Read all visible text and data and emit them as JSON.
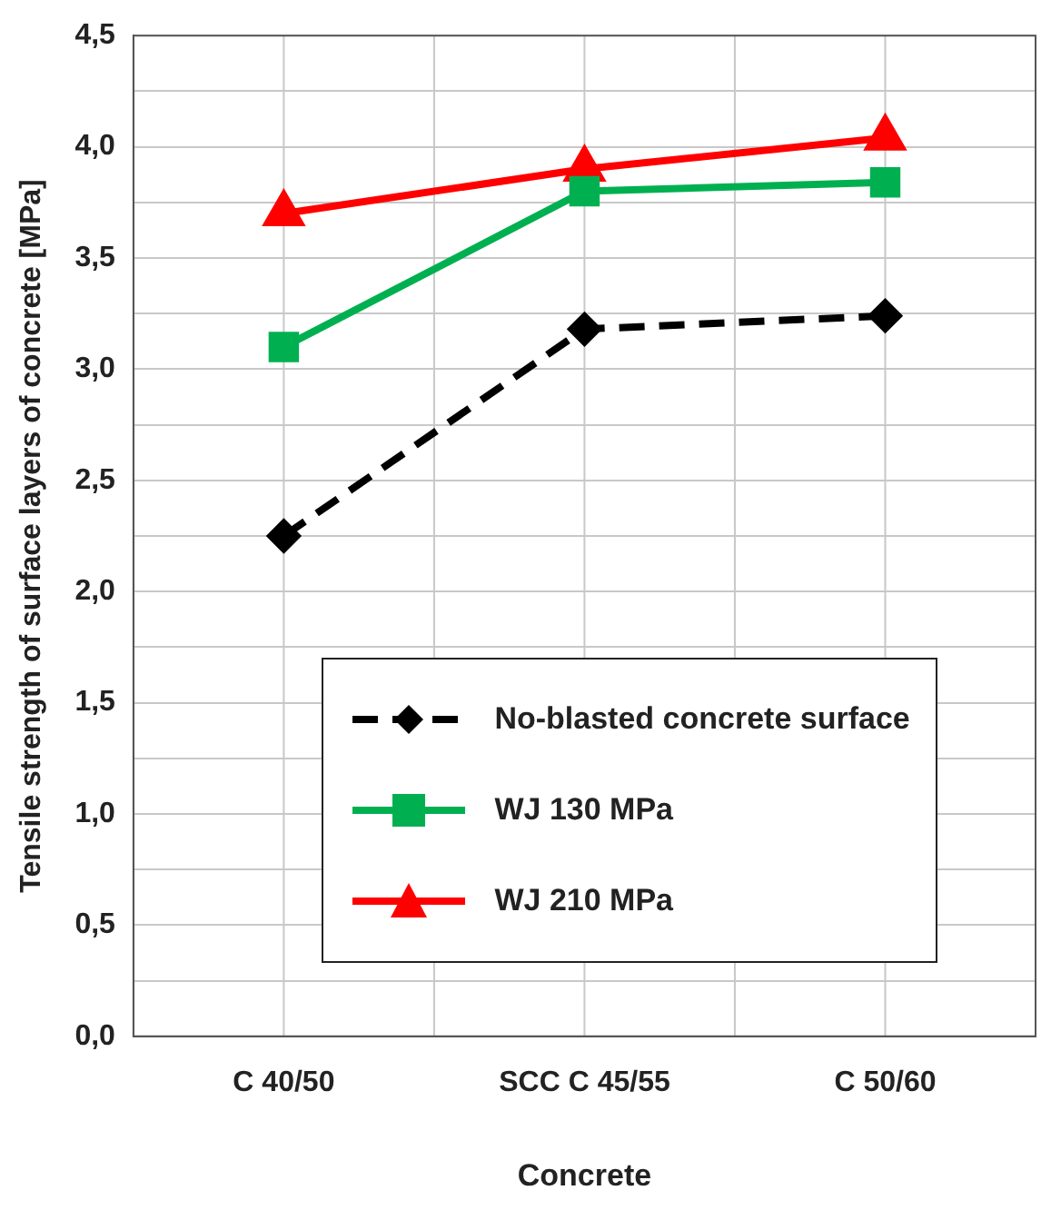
{
  "chart_data": {
    "type": "line",
    "xlabel": "Concrete",
    "ylabel": "Tensile strength of surface layers of concrete [MPa]",
    "categories": [
      "C 40/50",
      "SCC C 45/55",
      "C 50/60"
    ],
    "series": [
      {
        "name": "No-blasted concrete surface",
        "color": "#000000",
        "values": [
          2.25,
          3.18,
          3.24
        ],
        "marker": "diamond",
        "line_style": "dashed"
      },
      {
        "name": "WJ 130 MPa",
        "color": "#00b050",
        "values": [
          3.1,
          3.8,
          3.84
        ],
        "marker": "square",
        "line_style": "solid"
      },
      {
        "name": "WJ 210 MPa",
        "color": "#ff0000",
        "values": [
          3.7,
          3.9,
          4.04
        ],
        "marker": "triangle",
        "line_style": "solid"
      }
    ],
    "ylim": [
      0,
      4.5
    ],
    "yticks": [
      {
        "value": 0,
        "label": "0,0"
      },
      {
        "value": 0.25,
        "label": null
      },
      {
        "value": 0.5,
        "label": "0,5"
      },
      {
        "value": 0.75,
        "label": null
      },
      {
        "value": 1,
        "label": "1,0"
      },
      {
        "value": 1.25,
        "label": null
      },
      {
        "value": 1.5,
        "label": "1,5"
      },
      {
        "value": 1.75,
        "label": null
      },
      {
        "value": 2,
        "label": "2,0"
      },
      {
        "value": 2.25,
        "label": null
      },
      {
        "value": 2.5,
        "label": "2,5"
      },
      {
        "value": 2.75,
        "label": null
      },
      {
        "value": 3,
        "label": "3,0"
      },
      {
        "value": 3.25,
        "label": null
      },
      {
        "value": 3.5,
        "label": "3,5"
      },
      {
        "value": 3.75,
        "label": null
      },
      {
        "value": 4,
        "label": "4,0"
      },
      {
        "value": 4.25,
        "label": null
      },
      {
        "value": 4.5,
        "label": "4,5"
      }
    ],
    "grid": true,
    "legend": "bottom"
  }
}
